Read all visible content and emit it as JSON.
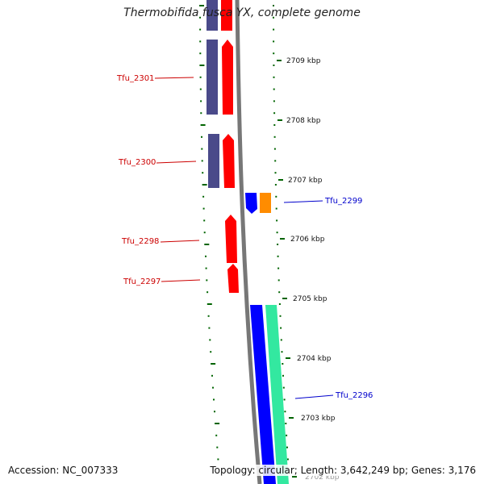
{
  "header": {
    "title": "Thermobifida fusca YX, complete genome"
  },
  "footer": {
    "accession": "Accession: NC_007333",
    "summary": "Topology: circular; Length: 3,642,249 bp; Genes: 3,176"
  },
  "ticks": [
    "2709 kbp",
    "2708 kbp",
    "2707 kbp",
    "2706 kbp",
    "2705 kbp",
    "2704 kbp",
    "2703 kbp",
    "2702 kbp"
  ],
  "genes": [
    "Tfu_2301",
    "Tfu_2300",
    "Tfu_2299",
    "Tfu_2298",
    "Tfu_2297",
    "Tfu_2296"
  ],
  "colors": {
    "forward_cds": "#ff0000",
    "reverse_cds_bar": "#4a4a8a",
    "strand_minus": "#0000ff",
    "strand_orange": "#ff8c00",
    "strand_green": "#33e8a0",
    "backbone": "#777777",
    "ticks": "#006400",
    "label_red": "#cc0000",
    "label_blue": "#0000cc"
  }
}
